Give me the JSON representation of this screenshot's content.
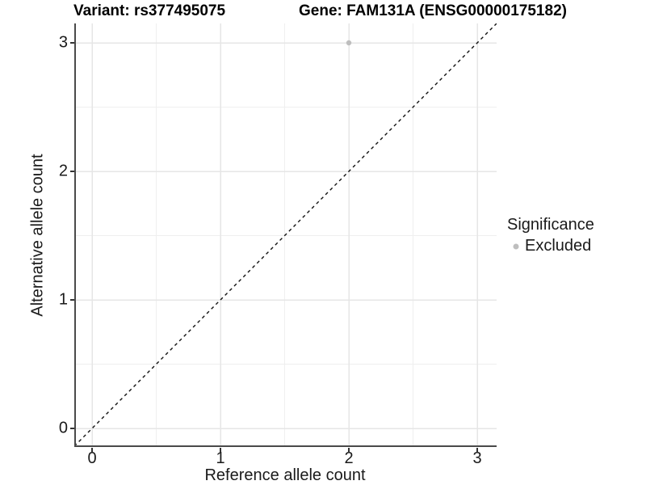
{
  "chart_data": {
    "type": "scatter",
    "title_left": "Variant: rs377495075",
    "title_right": "Gene: FAM131A (ENSG00000175182)",
    "xlabel": "Reference allele count",
    "ylabel": "Alternative allele count",
    "xlim": [
      -0.15,
      3.15
    ],
    "ylim": [
      -0.15,
      3.15
    ],
    "x_ticks": [
      "0",
      "1",
      "2",
      "3"
    ],
    "y_ticks": [
      "0",
      "1",
      "2",
      "3"
    ],
    "grid": "major gridlines at integers, minor at 0.5 steps, light gray on white panel",
    "points": [
      {
        "x": 2,
        "y": 3,
        "series": "Excluded",
        "color": "#bebebe"
      }
    ],
    "reference_line": {
      "type": "identity y=x",
      "style": "dashed",
      "color": "#111111"
    },
    "legend": {
      "title": "Significance",
      "position": "right",
      "entries": [
        {
          "label": "Excluded",
          "marker": "circle",
          "color": "#bebebe"
        }
      ]
    },
    "colors": {
      "axis_line": "#4a4a4a",
      "major_grid": "#e6e6e6",
      "minor_grid": "#efefef",
      "text": "#1a1a1a"
    }
  }
}
